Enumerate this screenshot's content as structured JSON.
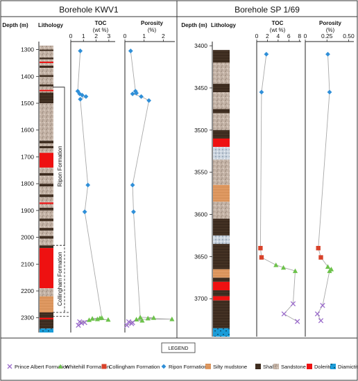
{
  "colors": {
    "shale": "#3b2a1e",
    "sandstone": "#bfaea0",
    "silty_mudstone": "#e09a63",
    "dolerite": "#ee1111",
    "diamictite": "#1a9cd8",
    "ripon_marker": "#2f8fd8",
    "whitehill_marker": "#6cc24a",
    "collingham_marker": "#d8422a",
    "prince_albert_marker": "#9a6acb",
    "profile_line": "#a8a8a8"
  },
  "chart_data": [
    {
      "type": "scatter",
      "panel": "left",
      "title": "Borehole KWV1",
      "depth_axis": {
        "label": "Depth (m)",
        "ylim": [
          1270,
          2355
        ],
        "ticks": [
          1300,
          1400,
          1500,
          1600,
          1700,
          1800,
          1900,
          2000,
          2100,
          2200,
          2300
        ]
      },
      "lithology_label": "Lithology",
      "lithology_intervals": [
        {
          "top": 1285,
          "base": 1460,
          "type": "sandstone"
        },
        {
          "top": 1300,
          "base": 1305,
          "type": "shale"
        },
        {
          "top": 1330,
          "base": 1336,
          "type": "shale"
        },
        {
          "top": 1345,
          "base": 1350,
          "type": "dolerite"
        },
        {
          "top": 1360,
          "base": 1368,
          "type": "shale"
        },
        {
          "top": 1395,
          "base": 1402,
          "type": "shale"
        },
        {
          "top": 1430,
          "base": 1437,
          "type": "shale"
        },
        {
          "top": 1450,
          "base": 1455,
          "type": "dolerite"
        },
        {
          "top": 1460,
          "base": 1500,
          "type": "shale"
        },
        {
          "top": 1500,
          "base": 1640,
          "type": "sandstone"
        },
        {
          "top": 1640,
          "base": 1650,
          "type": "shale"
        },
        {
          "top": 1650,
          "base": 1660,
          "type": "sandstone"
        },
        {
          "top": 1660,
          "base": 1668,
          "type": "shale"
        },
        {
          "top": 1668,
          "base": 1685,
          "type": "sandstone"
        },
        {
          "top": 1685,
          "base": 1740,
          "type": "dolerite"
        },
        {
          "top": 1740,
          "base": 1760,
          "type": "sandstone"
        },
        {
          "top": 1760,
          "base": 1770,
          "type": "shale"
        },
        {
          "top": 1770,
          "base": 1800,
          "type": "sandstone"
        },
        {
          "top": 1800,
          "base": 1810,
          "type": "shale"
        },
        {
          "top": 1810,
          "base": 1840,
          "type": "sandstone"
        },
        {
          "top": 1840,
          "base": 1850,
          "type": "shale"
        },
        {
          "top": 1850,
          "base": 1870,
          "type": "sandstone"
        },
        {
          "top": 1870,
          "base": 1876,
          "type": "dolerite"
        },
        {
          "top": 1876,
          "base": 1890,
          "type": "sandstone"
        },
        {
          "top": 1890,
          "base": 1900,
          "type": "shale"
        },
        {
          "top": 1900,
          "base": 1930,
          "type": "sandstone"
        },
        {
          "top": 1930,
          "base": 1940,
          "type": "shale"
        },
        {
          "top": 1940,
          "base": 1965,
          "type": "sandstone"
        },
        {
          "top": 1965,
          "base": 1975,
          "type": "shale"
        },
        {
          "top": 1975,
          "base": 1995,
          "type": "sandstone"
        },
        {
          "top": 1995,
          "base": 2005,
          "type": "shale"
        },
        {
          "top": 2005,
          "base": 2030,
          "type": "sandstone"
        },
        {
          "top": 2030,
          "base": 2040,
          "type": "shale"
        },
        {
          "top": 2040,
          "base": 2190,
          "type": "dolerite"
        },
        {
          "top": 2190,
          "base": 2220,
          "type": "sandstone"
        },
        {
          "top": 2220,
          "base": 2280,
          "type": "silty_mudstone"
        },
        {
          "top": 2280,
          "base": 2340,
          "type": "shale"
        },
        {
          "top": 2300,
          "base": 2306,
          "type": "dolerite"
        },
        {
          "top": 2340,
          "base": 2355,
          "type": "diamictite"
        }
      ],
      "formation_labels": [
        {
          "name": "Ripon Formation",
          "top": 1440,
          "base": 2030
        },
        {
          "name": "Collingham Formation",
          "top": 2030,
          "base": 2280
        }
      ],
      "tracks": [
        {
          "title": "TOC",
          "unit": "(wt %)",
          "xlim": [
            0,
            3.5
          ],
          "ticks": [
            0,
            1,
            2,
            3
          ],
          "series": [
            {
              "name": "Ripon Formation",
              "marker": "diamond",
              "points": [
                [
                  0.75,
                  1305
                ],
                [
                  0.55,
                  1455
                ],
                [
                  0.7,
                  1465
                ],
                [
                  0.9,
                  1470
                ],
                [
                  0.75,
                  1485
                ],
                [
                  1.2,
                  1475
                ],
                [
                  1.35,
                  1805
                ],
                [
                  1.1,
                  1905
                ]
              ]
            },
            {
              "name": "Whitehill Formation",
              "marker": "triangle",
              "points": [
                [
                  2.45,
                  2300
                ],
                [
                  2.95,
                  2307
                ],
                [
                  2.1,
                  2305
                ],
                [
                  1.7,
                  2303
                ],
                [
                  1.45,
                  2308
                ],
                [
                  2.3,
                  2301
                ]
              ]
            },
            {
              "name": "Prince Albert Formation",
              "marker": "x",
              "points": [
                [
                  0.7,
                  2315
                ],
                [
                  0.85,
                  2320
                ],
                [
                  1.1,
                  2318
                ],
                [
                  0.6,
                  2328
                ]
              ]
            }
          ]
        },
        {
          "title": "Porosity",
          "unit": "(%)",
          "xlim": [
            0,
            2.6
          ],
          "ticks": [
            0,
            1,
            2
          ],
          "series": [
            {
              "name": "Ripon Formation",
              "marker": "diamond",
              "points": [
                [
                  0.3,
                  1305
                ],
                [
                  0.55,
                  1455
                ],
                [
                  0.4,
                  1465
                ],
                [
                  0.6,
                  1462
                ],
                [
                  0.85,
                  1475
                ],
                [
                  1.25,
                  1490
                ],
                [
                  0.4,
                  1805
                ],
                [
                  0.45,
                  1905
                ]
              ]
            },
            {
              "name": "Whitehill Formation",
              "marker": "triangle",
              "points": [
                [
                  0.8,
                  2298
                ],
                [
                  1.2,
                  2302
                ],
                [
                  0.6,
                  2306
                ],
                [
                  1.5,
                  2300
                ],
                [
                  2.45,
                  2305
                ],
                [
                  0.9,
                  2310
                ]
              ]
            },
            {
              "name": "Prince Albert Formation",
              "marker": "x",
              "points": [
                [
                  0.2,
                  2315
                ],
                [
                  0.35,
                  2322
                ],
                [
                  0.1,
                  2328
                ],
                [
                  0.4,
                  2318
                ]
              ]
            }
          ]
        }
      ]
    },
    {
      "type": "scatter",
      "panel": "right",
      "title": "Borehole SP 1/69",
      "depth_axis": {
        "label": "Depth (m)",
        "ylim": [
          3395,
          3745
        ],
        "ticks": [
          3400,
          3450,
          3500,
          3550,
          3600,
          3650,
          3700
        ]
      },
      "lithology_label": "Lithology",
      "lithology_intervals": [
        {
          "top": 3405,
          "base": 3420,
          "type": "shale"
        },
        {
          "top": 3420,
          "base": 3445,
          "type": "sandstone"
        },
        {
          "top": 3445,
          "base": 3455,
          "type": "shale"
        },
        {
          "top": 3455,
          "base": 3475,
          "type": "sandstone"
        },
        {
          "top": 3475,
          "base": 3480,
          "type": "shale"
        },
        {
          "top": 3480,
          "base": 3500,
          "type": "sandstone"
        },
        {
          "top": 3500,
          "base": 3510,
          "type": "shale"
        },
        {
          "top": 3510,
          "base": 3520,
          "type": "dolerite"
        },
        {
          "top": 3520,
          "base": 3535,
          "type": "diamictite_speckle"
        },
        {
          "top": 3535,
          "base": 3565,
          "type": "sandstone"
        },
        {
          "top": 3565,
          "base": 3585,
          "type": "silty_mudstone"
        },
        {
          "top": 3585,
          "base": 3605,
          "type": "sandstone"
        },
        {
          "top": 3605,
          "base": 3625,
          "type": "shale"
        },
        {
          "top": 3625,
          "base": 3635,
          "type": "diamictite_speckle"
        },
        {
          "top": 3635,
          "base": 3665,
          "type": "shale"
        },
        {
          "top": 3665,
          "base": 3675,
          "type": "silty_mudstone"
        },
        {
          "top": 3675,
          "base": 3680,
          "type": "shale"
        },
        {
          "top": 3680,
          "base": 3690,
          "type": "dolerite"
        },
        {
          "top": 3690,
          "base": 3697,
          "type": "shale"
        },
        {
          "top": 3697,
          "base": 3702,
          "type": "dolerite"
        },
        {
          "top": 3702,
          "base": 3735,
          "type": "shale"
        },
        {
          "top": 3735,
          "base": 3745,
          "type": "diamictite"
        }
      ],
      "tracks": [
        {
          "title": "TOC",
          "unit": "(wt %)",
          "xlim": [
            0,
            8.3
          ],
          "ticks": [
            0,
            2,
            4,
            6,
            8
          ],
          "series": [
            {
              "name": "Ripon Formation",
              "marker": "diamond",
              "points": [
                [
                  1.8,
                  3410
                ],
                [
                  0.9,
                  3455
                ]
              ]
            },
            {
              "name": "Collingham Formation",
              "marker": "square",
              "points": [
                [
                  0.7,
                  3640
                ],
                [
                  0.9,
                  3651
                ]
              ]
            },
            {
              "name": "Whitehill Formation",
              "marker": "triangle",
              "points": [
                [
                  3.6,
                  3660
                ],
                [
                  5.0,
                  3663
                ],
                [
                  7.2,
                  3667
                ]
              ]
            },
            {
              "name": "Prince Albert Formation",
              "marker": "x",
              "points": [
                [
                  6.8,
                  3706
                ],
                [
                  5.1,
                  3718
                ],
                [
                  7.6,
                  3727
                ]
              ]
            }
          ]
        },
        {
          "title": "Porosity",
          "unit": "(%)",
          "xlim": [
            0,
            0.56
          ],
          "ticks": [
            0,
            0.25,
            0.5
          ],
          "tick_labels": [
            "0",
            "0.25",
            "0.50"
          ],
          "series": [
            {
              "name": "Ripon Formation",
              "marker": "diamond",
              "points": [
                [
                  0.26,
                  3410
                ],
                [
                  0.28,
                  3455
                ]
              ]
            },
            {
              "name": "Collingham Formation",
              "marker": "square",
              "points": [
                [
                  0.15,
                  3640
                ],
                [
                  0.18,
                  3651
                ]
              ]
            },
            {
              "name": "Whitehill Formation",
              "marker": "triangle",
              "points": [
                [
                  0.26,
                  3662
                ],
                [
                  0.3,
                  3665
                ],
                [
                  0.28,
                  3667
                ]
              ]
            },
            {
              "name": "Prince Albert Formation",
              "marker": "x",
              "points": [
                [
                  0.2,
                  3708
                ],
                [
                  0.14,
                  3718
                ],
                [
                  0.18,
                  3726
                ]
              ]
            }
          ]
        }
      ]
    }
  ],
  "legend": {
    "title": "LEGEND",
    "items": [
      {
        "label": "Prince Albert  Formation",
        "symbol": "x",
        "color": "#9a6acb"
      },
      {
        "label": "Whitehill Formation",
        "symbol": "triangle",
        "color": "#6cc24a"
      },
      {
        "label": "Collingham  Formation",
        "symbol": "square",
        "color": "#d8422a"
      },
      {
        "label": "Ripon Formation",
        "symbol": "diamond",
        "color": "#2f8fd8"
      },
      {
        "label": "Silty mudstone",
        "symbol": "swatch",
        "color": "#e09a63"
      },
      {
        "label": "Shale",
        "symbol": "swatch",
        "color": "#3b2a1e"
      },
      {
        "label": "Sandstone",
        "symbol": "swatch",
        "color": "#bfaea0"
      },
      {
        "label": "Dolerite",
        "symbol": "swatch",
        "color": "#ee1111"
      },
      {
        "label": "Diamictite",
        "symbol": "swatch-dots",
        "color": "#1a9cd8"
      }
    ]
  }
}
